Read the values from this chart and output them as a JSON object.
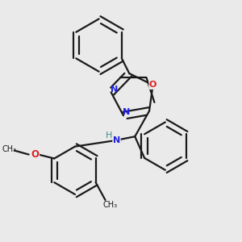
{
  "background_color": "#eaeaea",
  "bond_color": "#1a1a1a",
  "atom_colors": {
    "N": "#2222dd",
    "O": "#dd2222",
    "H": "#448888",
    "C": "#1a1a1a"
  },
  "lw": 1.6
}
